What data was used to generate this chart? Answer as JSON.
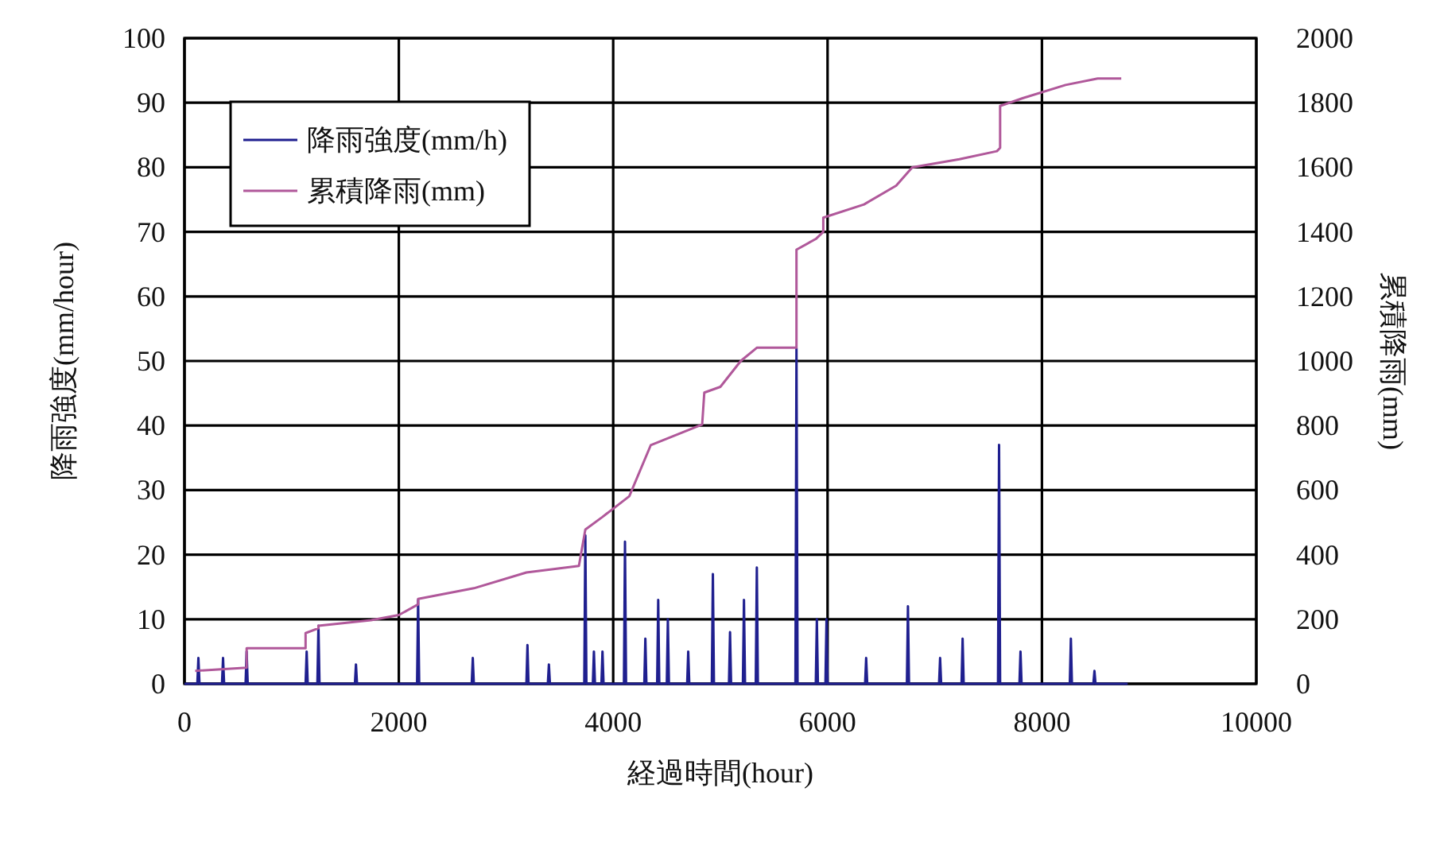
{
  "chart_data": {
    "type": "line",
    "xlabel": "経過時間(hour)",
    "ylabel": "降雨強度(mm/hour)",
    "y2label": "累積降雨(mm)",
    "xlim": [
      0,
      10000
    ],
    "xticks": [
      0,
      2000,
      4000,
      6000,
      8000,
      10000
    ],
    "ylim": [
      0,
      100
    ],
    "yticks": [
      0,
      10,
      20,
      30,
      40,
      50,
      60,
      70,
      80,
      90,
      100
    ],
    "y2lim": [
      0,
      2000
    ],
    "y2ticks": [
      0,
      200,
      400,
      600,
      800,
      1000,
      1200,
      1400,
      1600,
      1800,
      2000
    ],
    "grid": true,
    "legend": "top left",
    "series": [
      {
        "name": "降雨強度(mm/h)",
        "color": "#1f1f8f",
        "x": [
          0,
          120,
          130,
          140,
          350,
          360,
          370,
          570,
          580,
          590,
          1130,
          1140,
          1150,
          1240,
          1250,
          1260,
          1590,
          1600,
          1610,
          2170,
          2180,
          2190,
          2680,
          2690,
          2700,
          3190,
          3200,
          3210,
          3390,
          3400,
          3410,
          3730,
          3740,
          3750,
          3810,
          3820,
          3830,
          3890,
          3900,
          3910,
          4100,
          4110,
          4120,
          4290,
          4300,
          4310,
          4410,
          4420,
          4430,
          4500,
          4510,
          4520,
          4690,
          4700,
          4710,
          4920,
          4930,
          4940,
          5080,
          5090,
          5100,
          5210,
          5220,
          5230,
          5330,
          5340,
          5350,
          5700,
          5710,
          5720,
          5890,
          5900,
          5910,
          5980,
          5990,
          6000,
          6350,
          6360,
          6370,
          6740,
          6750,
          6760,
          7040,
          7050,
          7060,
          7250,
          7260,
          7270,
          7590,
          7600,
          7610,
          7790,
          7800,
          7810,
          8260,
          8270,
          8280,
          8480,
          8490,
          8500,
          8800
        ],
        "values": [
          0,
          0,
          4,
          0,
          0,
          4,
          0,
          0,
          5,
          0,
          0,
          5,
          0,
          0,
          9,
          0,
          0,
          3,
          0,
          0,
          13,
          0,
          0,
          4,
          0,
          0,
          6,
          0,
          0,
          3,
          0,
          0,
          23,
          0,
          0,
          5,
          0,
          0,
          5,
          0,
          0,
          22,
          0,
          0,
          7,
          0,
          0,
          13,
          0,
          0,
          10,
          0,
          0,
          5,
          0,
          0,
          17,
          0,
          0,
          8,
          0,
          0,
          13,
          0,
          0,
          18,
          0,
          0,
          52,
          0,
          0,
          10,
          0,
          0,
          10,
          0,
          0,
          4,
          0,
          0,
          12,
          0,
          0,
          4,
          0,
          0,
          7,
          0,
          0,
          37,
          0,
          0,
          5,
          0,
          0,
          7,
          0,
          0,
          2,
          0,
          0
        ]
      },
      {
        "name": "累積降雨(mm)",
        "color": "#b0589a",
        "axis": "y2",
        "x": [
          100,
          580,
          580,
          1130,
          1130,
          1250,
          1250,
          1740,
          2000,
          2180,
          2180,
          2700,
          3190,
          3680,
          3740,
          3900,
          4150,
          4350,
          4830,
          4850,
          5000,
          5190,
          5340,
          5710,
          5710,
          5890,
          5960,
          5960,
          6340,
          6640,
          6790,
          7230,
          7580,
          7610,
          7610,
          7820,
          8220,
          8520,
          8740
        ],
        "values": [
          40,
          50,
          110,
          110,
          157,
          172,
          180,
          197,
          213,
          246,
          263,
          296,
          345,
          365,
          478,
          517,
          581,
          739,
          803,
          902,
          920,
          1000,
          1041,
          1041,
          1345,
          1378,
          1400,
          1444,
          1485,
          1543,
          1600,
          1625,
          1650,
          1660,
          1790,
          1814,
          1855,
          1875,
          1875
        ]
      }
    ]
  }
}
